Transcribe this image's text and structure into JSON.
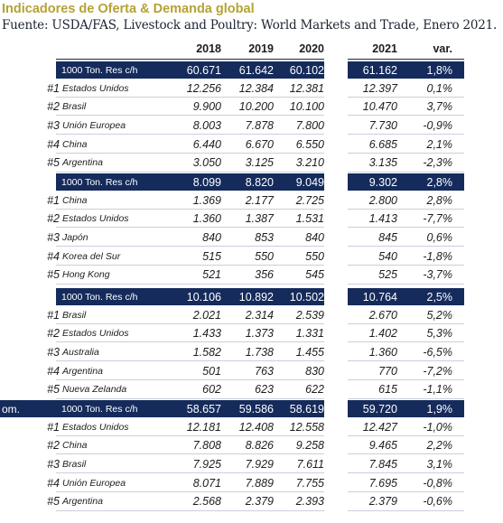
{
  "title": "Indicadores de Oferta & Demanda global",
  "source": "Fuente: USDA/FAS, Livestock and Poultry: World Markets and Trade, Enero 2021.",
  "colors": {
    "title": "#b5a233",
    "band": "#152b5c",
    "text": "#1d1d1d"
  },
  "columns": [
    "2018",
    "2019",
    "2020",
    "2021",
    "var."
  ],
  "sections": [
    {
      "prefix": "",
      "unit": "1000 Ton. Res c/h",
      "totals": [
        "60.671",
        "61.642",
        "60.102",
        "61.162",
        "1,8%"
      ],
      "rows": [
        {
          "rank": "#1",
          "country": "Estados Unidos",
          "values": [
            "12.256",
            "12.384",
            "12.381",
            "12.397",
            "0,1%"
          ]
        },
        {
          "rank": "#2",
          "country": "Brasil",
          "values": [
            "9.900",
            "10.200",
            "10.100",
            "10.470",
            "3,7%"
          ]
        },
        {
          "rank": "#3",
          "country": "Unión Europea",
          "values": [
            "8.003",
            "7.878",
            "7.800",
            "7.730",
            "-0,9%"
          ]
        },
        {
          "rank": "#4",
          "country": "China",
          "values": [
            "6.440",
            "6.670",
            "6.550",
            "6.685",
            "2,1%"
          ]
        },
        {
          "rank": "#5",
          "country": "Argentina",
          "values": [
            "3.050",
            "3.125",
            "3.210",
            "3.135",
            "-2,3%"
          ]
        }
      ]
    },
    {
      "prefix": "",
      "unit": "1000 Ton. Res c/h",
      "totals": [
        "8.099",
        "8.820",
        "9.049",
        "9.302",
        "2,8%"
      ],
      "rows": [
        {
          "rank": "#1",
          "country": "China",
          "values": [
            "1.369",
            "2.177",
            "2.725",
            "2.800",
            "2,8%"
          ]
        },
        {
          "rank": "#2",
          "country": "Estados Unidos",
          "values": [
            "1.360",
            "1.387",
            "1.531",
            "1.413",
            "-7,7%"
          ]
        },
        {
          "rank": "#3",
          "country": "Japón",
          "values": [
            "840",
            "853",
            "840",
            "845",
            "0,6%"
          ]
        },
        {
          "rank": "#4",
          "country": "Korea del Sur",
          "values": [
            "515",
            "550",
            "550",
            "540",
            "-1,8%"
          ]
        },
        {
          "rank": "#5",
          "country": "Hong Kong",
          "values": [
            "521",
            "356",
            "545",
            "525",
            "-3,7%"
          ]
        }
      ]
    },
    {
      "prefix": "",
      "unit": "1000 Ton. Res c/h",
      "totals": [
        "10.106",
        "10.892",
        "10.502",
        "10.764",
        "2,5%"
      ],
      "rows": [
        {
          "rank": "#1",
          "country": "Brasil",
          "values": [
            "2.021",
            "2.314",
            "2.539",
            "2.670",
            "5,2%"
          ]
        },
        {
          "rank": "#2",
          "country": "Estados Unidos",
          "values": [
            "1.433",
            "1.373",
            "1.331",
            "1.402",
            "5,3%"
          ]
        },
        {
          "rank": "#3",
          "country": "Australia",
          "values": [
            "1.582",
            "1.738",
            "1.455",
            "1.360",
            "-6,5%"
          ]
        },
        {
          "rank": "#4",
          "country": "Argentina",
          "values": [
            "501",
            "763",
            "830",
            "770",
            "-7,2%"
          ]
        },
        {
          "rank": "#5",
          "country": "Nueva Zelanda",
          "values": [
            "602",
            "623",
            "622",
            "615",
            "-1,1%"
          ]
        }
      ]
    },
    {
      "prefix": "om.",
      "unit": "1000 Ton. Res c/h",
      "totals": [
        "58.657",
        "59.586",
        "58.619",
        "59.720",
        "1,9%"
      ],
      "rows": [
        {
          "rank": "#1",
          "country": "Estados Unidos",
          "values": [
            "12.181",
            "12.408",
            "12.558",
            "12.427",
            "-1,0%"
          ]
        },
        {
          "rank": "#2",
          "country": "China",
          "values": [
            "7.808",
            "8.826",
            "9.258",
            "9.465",
            "2,2%"
          ]
        },
        {
          "rank": "#3",
          "country": "Brasil",
          "values": [
            "7.925",
            "7.929",
            "7.611",
            "7.845",
            "3,1%"
          ]
        },
        {
          "rank": "#4",
          "country": "Unión Europea",
          "values": [
            "8.071",
            "7.889",
            "7.755",
            "7.695",
            "-0,8%"
          ]
        },
        {
          "rank": "#5",
          "country": "Argentina",
          "values": [
            "2.568",
            "2.379",
            "2.393",
            "2.379",
            "-0,6%"
          ]
        }
      ]
    }
  ]
}
